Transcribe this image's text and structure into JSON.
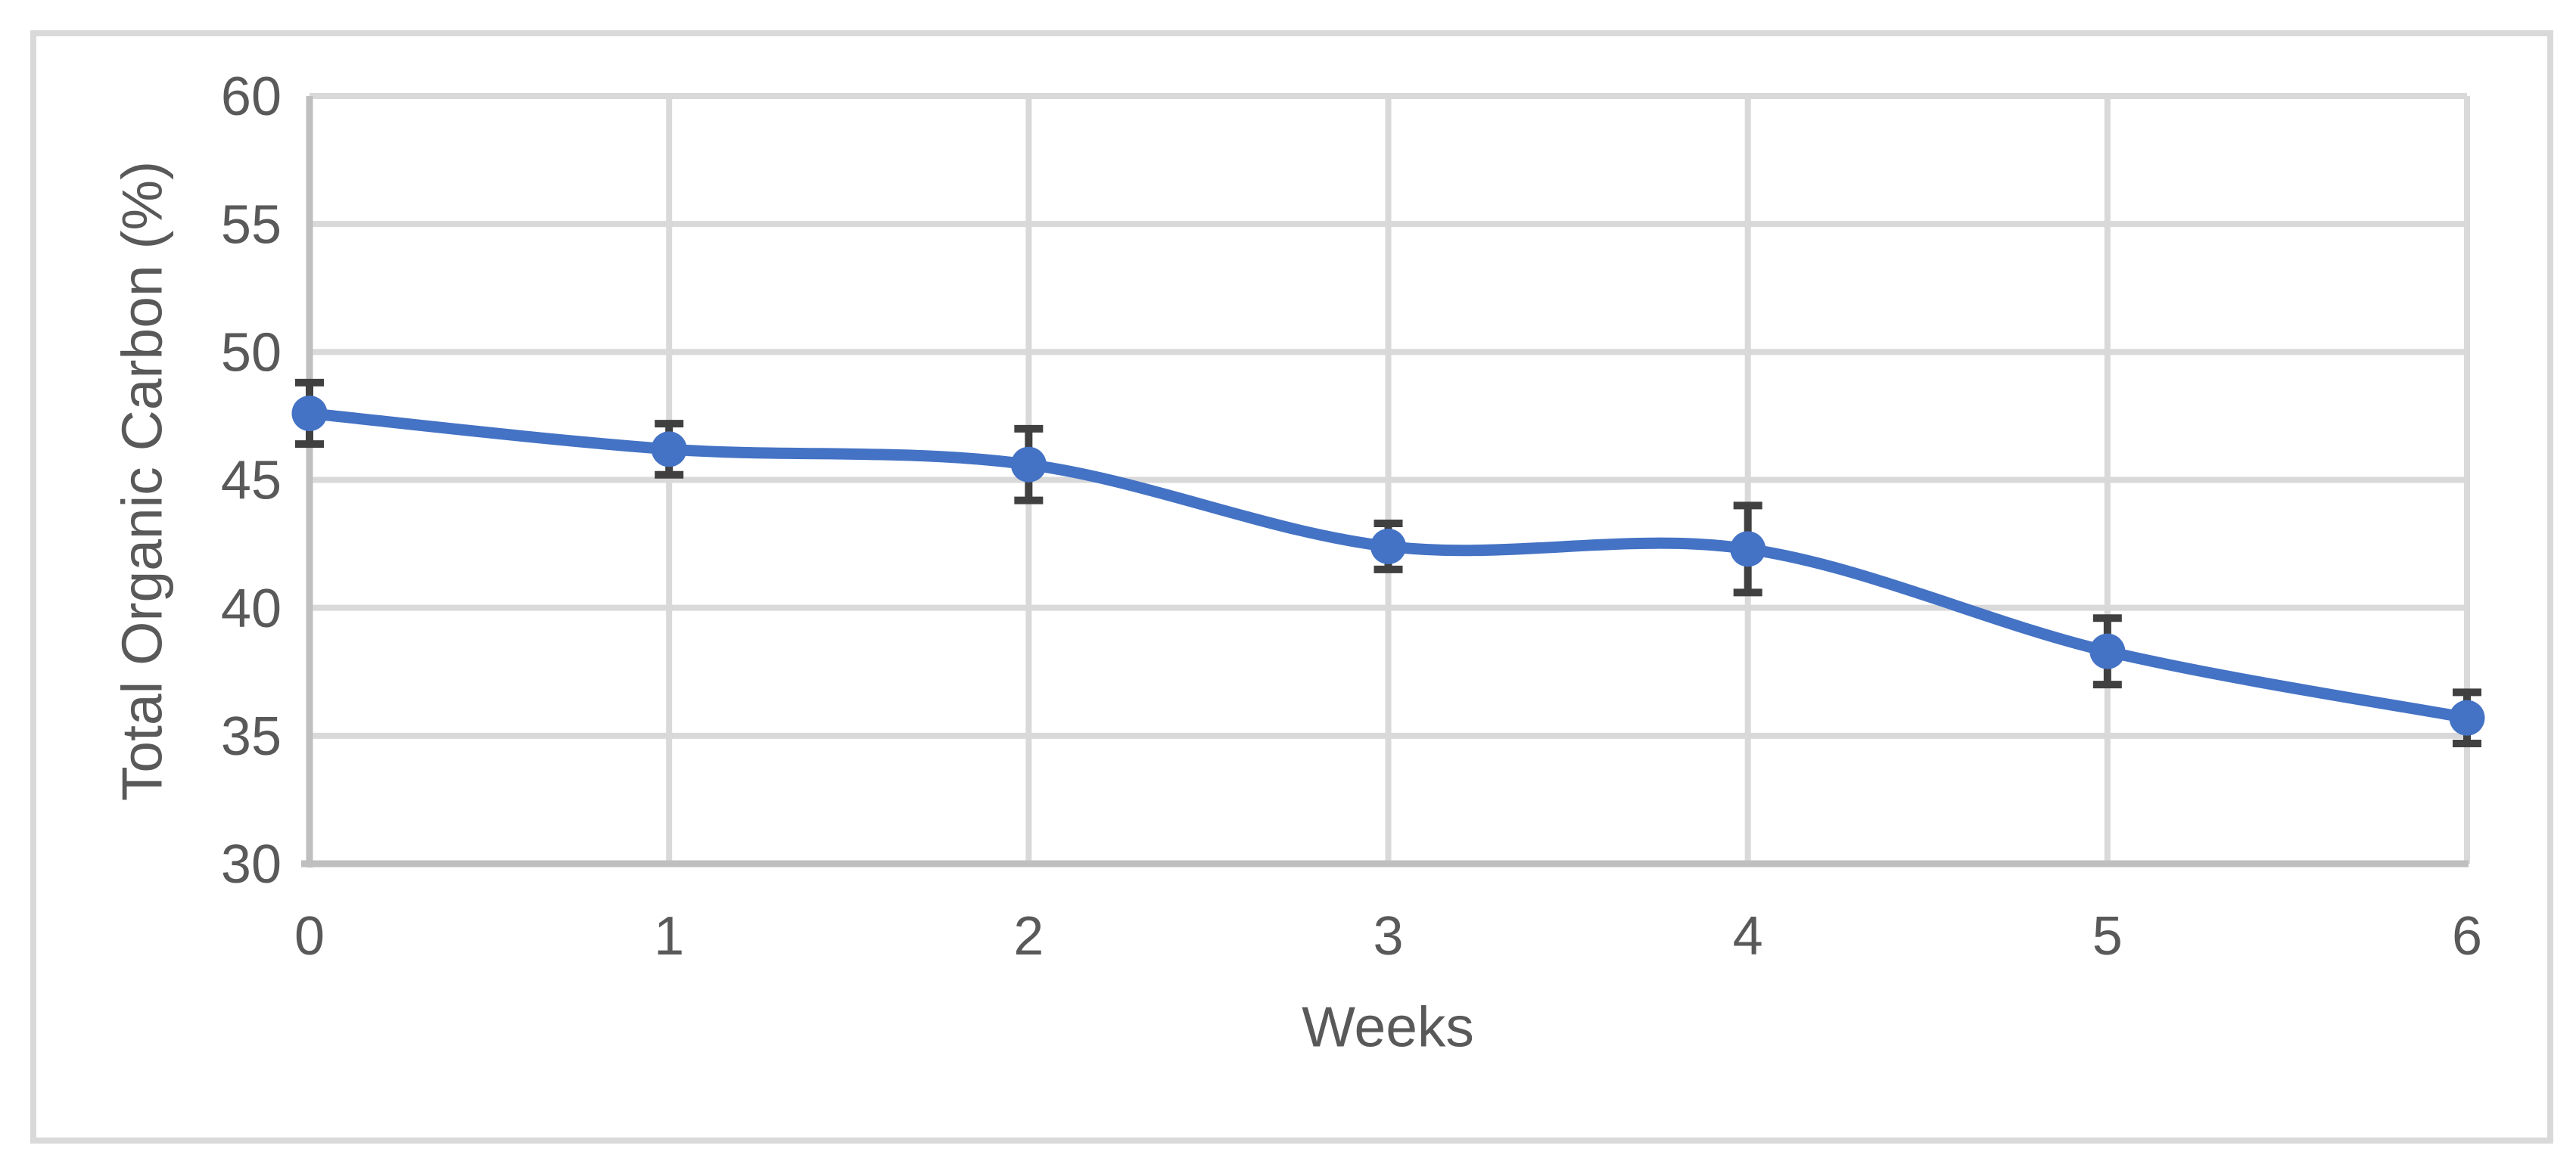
{
  "chart_data": {
    "type": "line",
    "title": "",
    "xlabel": "Weeks",
    "ylabel": "Total Organic Carbon (%)",
    "x": [
      0,
      1,
      2,
      3,
      4,
      5,
      6
    ],
    "series": [
      {
        "name": "Total Organic Carbon",
        "values": [
          47.6,
          46.2,
          45.6,
          42.4,
          42.3,
          38.3,
          35.7
        ],
        "error_bars": [
          1.2,
          1.0,
          1.4,
          0.9,
          1.7,
          1.3,
          1.0
        ]
      }
    ],
    "x_ticks": [
      "0",
      "1",
      "2",
      "3",
      "4",
      "5",
      "6"
    ],
    "y_ticks": [
      "30",
      "35",
      "40",
      "45",
      "50",
      "55",
      "60"
    ],
    "xlim": [
      0,
      6
    ],
    "ylim": [
      30,
      60
    ],
    "grid": true,
    "smooth": true,
    "marker": "circle",
    "legend_position": "none",
    "colors": {
      "line": "#4472C4",
      "marker": "#4472C4",
      "error_bar": "#404040",
      "gridline": "#D9D9D9",
      "axis_line": "#BFBFBF",
      "tick_label": "#595959",
      "axis_title": "#595959",
      "figure_border": "#D9D9D9",
      "background": "#FFFFFF"
    }
  }
}
